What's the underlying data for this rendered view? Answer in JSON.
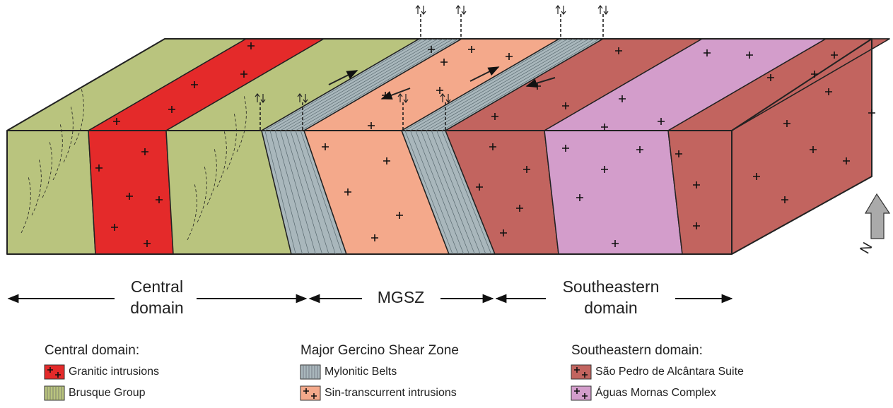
{
  "domains": [
    {
      "lines": [
        "Central",
        "domain"
      ]
    },
    {
      "lines": [
        "MGSZ"
      ]
    },
    {
      "lines": [
        "Southeastern",
        "domain"
      ]
    }
  ],
  "north": "N",
  "legend": [
    {
      "heading": "Central domain:",
      "items": [
        "Granitic intrusions",
        "Brusque Group"
      ]
    },
    {
      "heading": "Major Gercino Shear Zone",
      "items": [
        "Mylonitic Belts",
        "Sin-transcurrent intrusions"
      ]
    },
    {
      "heading": "Southeastern domain:",
      "items": [
        "São Pedro de Alcântara Suite",
        "Águas Mornas Complex"
      ]
    }
  ]
}
